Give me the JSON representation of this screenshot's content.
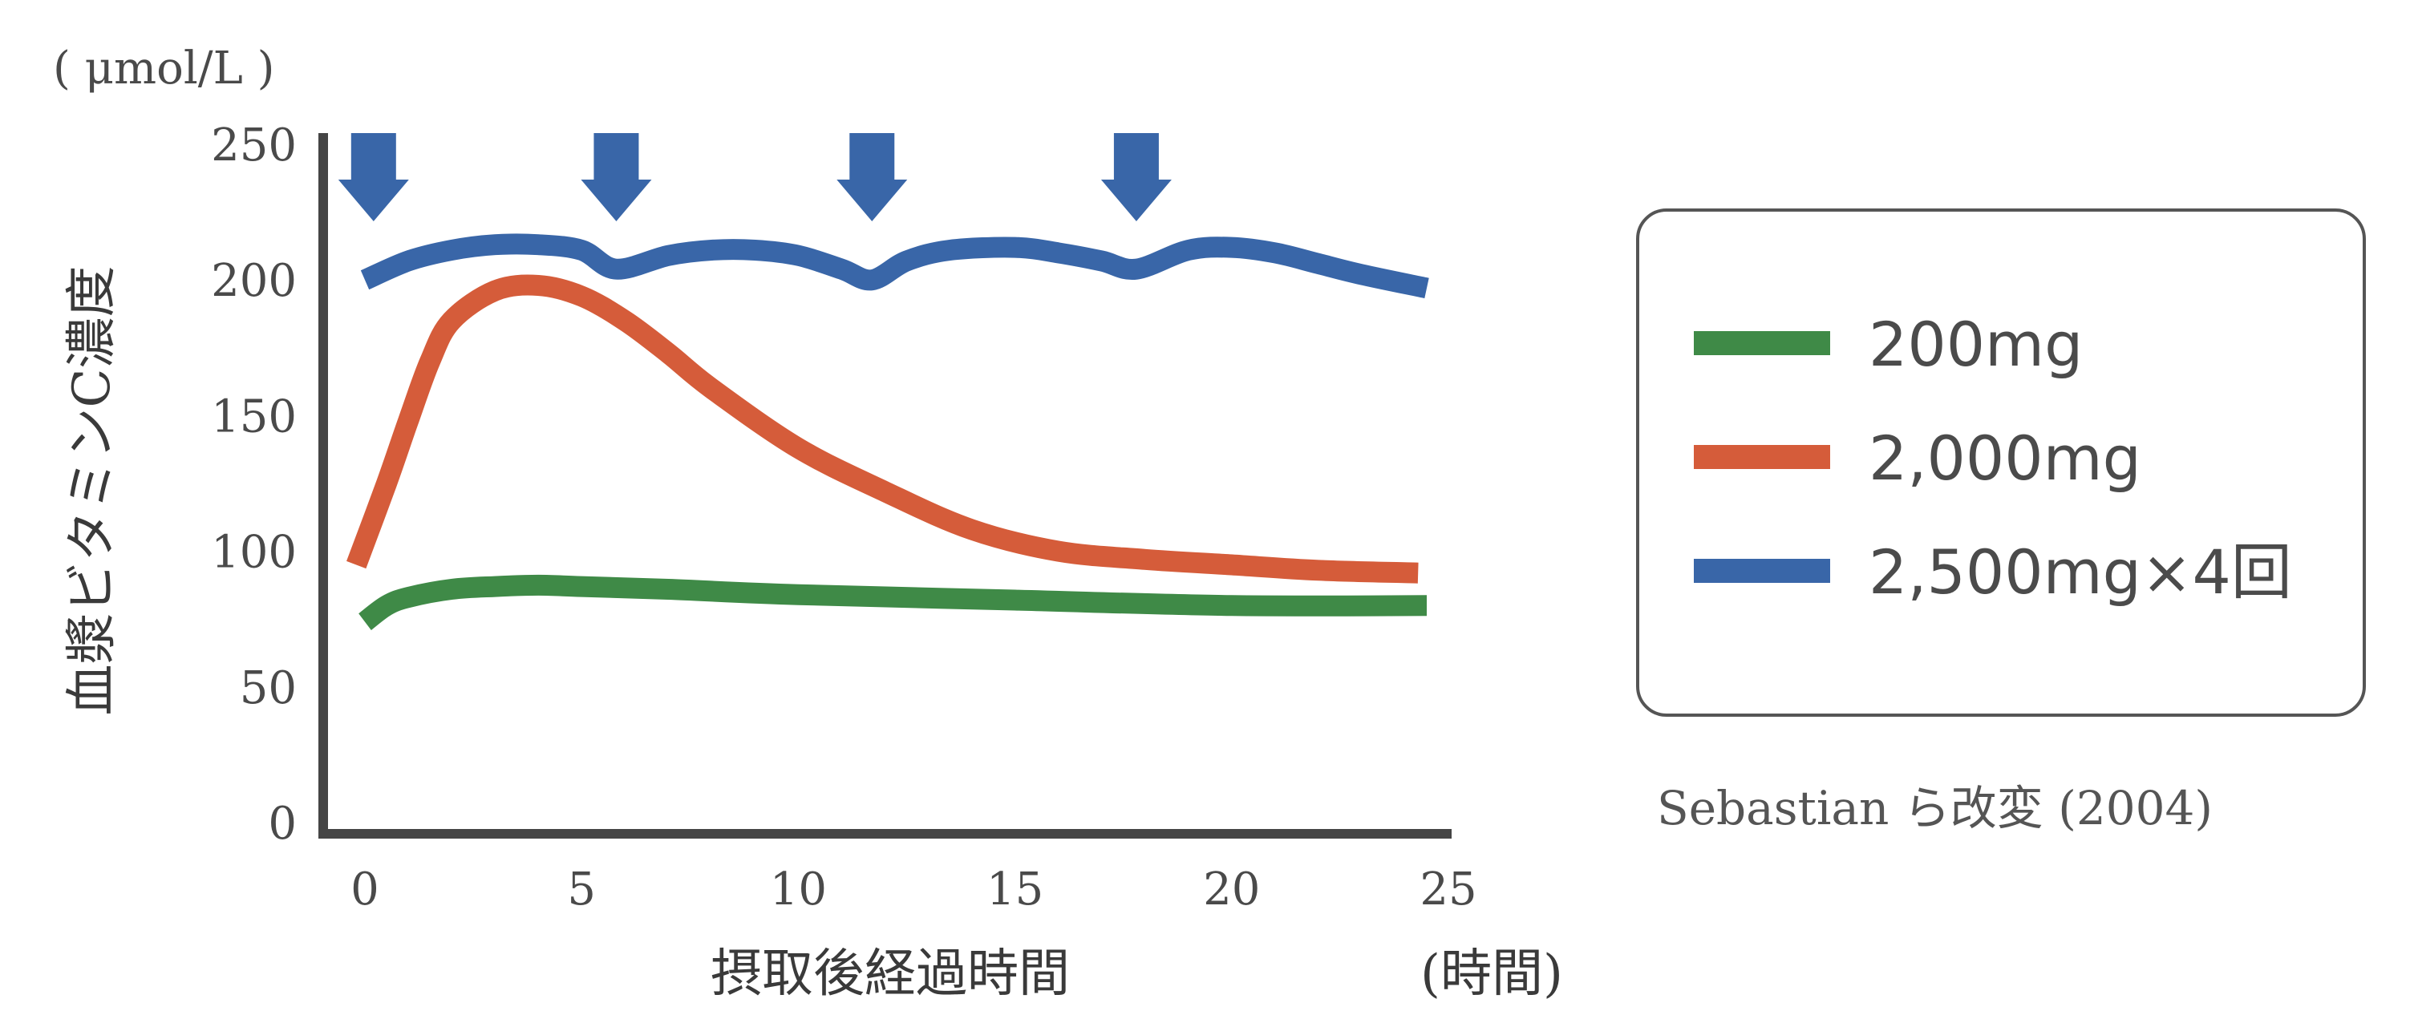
{
  "chart_data": {
    "type": "line",
    "ylabel": "血漿ビタミンC濃度",
    "yunit": "( μmol/L )",
    "xlabel": "摂取後経過時間",
    "xunit": "(時間)",
    "xlim": [
      0,
      25
    ],
    "ylim": [
      0,
      250
    ],
    "xticks": [
      0,
      5,
      10,
      15,
      20,
      25
    ],
    "yticks": [
      0,
      50,
      100,
      150,
      200,
      250
    ],
    "grid": false,
    "legend_position": "right",
    "dose_times": [
      0.2,
      5.8,
      11.7,
      17.8
    ],
    "series": [
      {
        "name": "200mg",
        "color": "#3f8a47",
        "x": [
          0,
          0.5,
          1,
          2,
          3,
          4,
          5,
          7,
          10,
          15,
          20,
          24.5
        ],
        "y": [
          74,
          80,
          83,
          86,
          87,
          87.5,
          87,
          86,
          84,
          82,
          80,
          80
        ]
      },
      {
        "name": "2,000mg",
        "color": "#d55c3a",
        "x": [
          -0.2,
          0.5,
          1,
          1.5,
          2,
          3,
          4,
          5,
          6,
          7,
          8,
          10,
          12,
          14,
          16,
          18,
          20,
          22,
          24.3
        ],
        "y": [
          95,
          125,
          148,
          170,
          185,
          196,
          198,
          194,
          185,
          173,
          160,
          138,
          122,
          108,
          100,
          97,
          95,
          93,
          92
        ]
      },
      {
        "name": "2,500mg×4回",
        "color": "#3966a8",
        "x": [
          0,
          1,
          2,
          3,
          4,
          5,
          5.8,
          7,
          8,
          9,
          10,
          11,
          11.7,
          12.5,
          13.5,
          15,
          16,
          17,
          17.8,
          19,
          20,
          21,
          22,
          23,
          24.5
        ],
        "y": [
          200,
          207,
          211,
          213,
          213,
          211,
          204,
          209,
          211,
          211,
          209,
          204,
          200,
          207,
          211,
          212,
          210,
          207,
          204,
          211,
          212,
          210,
          206,
          202,
          197
        ]
      }
    ]
  },
  "source": "Sebastian ら改変 (2004)"
}
